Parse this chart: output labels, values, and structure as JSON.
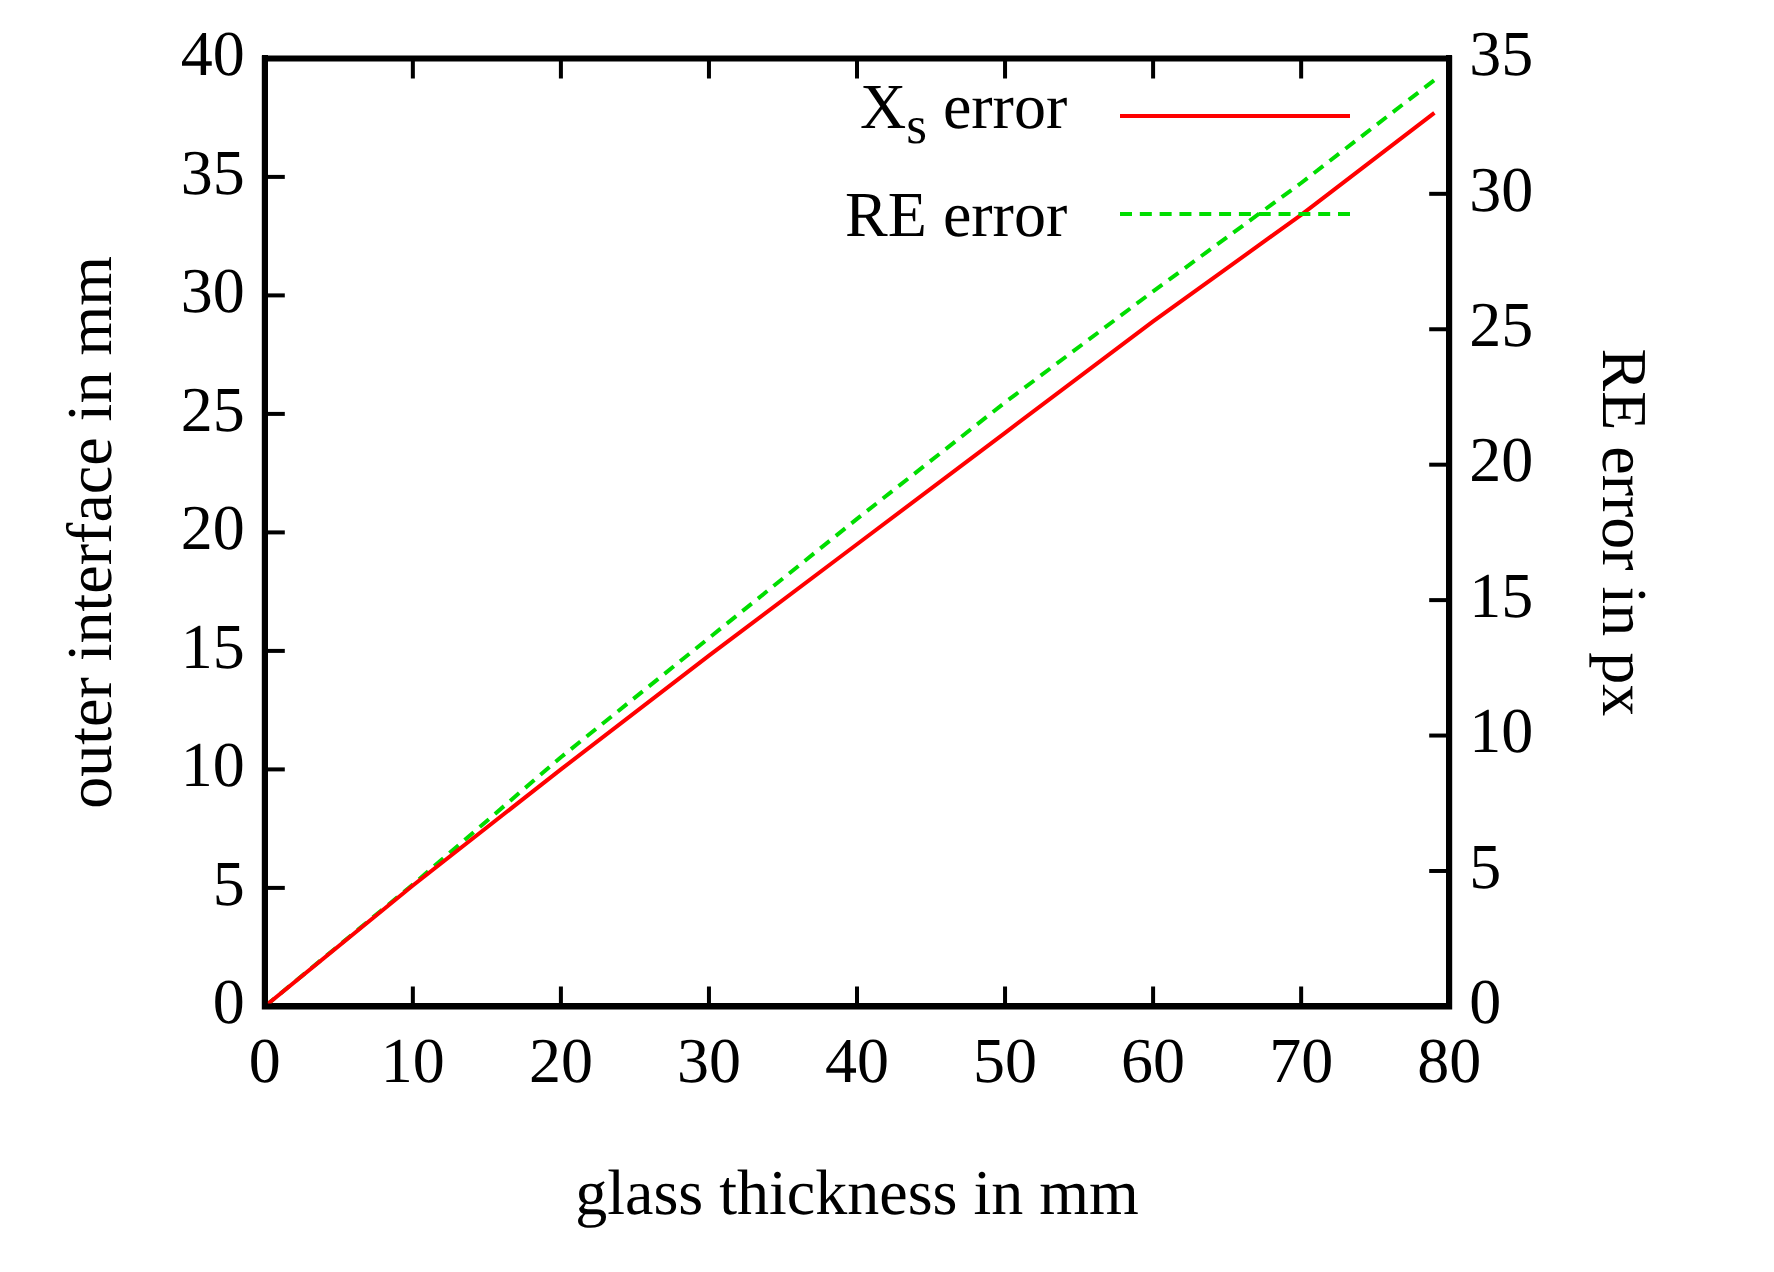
{
  "chart_data": {
    "type": "line",
    "xlabel": "glass thickness in mm",
    "ylabel": "outer interface in mm",
    "y2label": "RE error in px",
    "xlim": [
      0,
      80
    ],
    "xticks": [
      0,
      10,
      20,
      30,
      40,
      50,
      60,
      70,
      80
    ],
    "ylim": [
      0,
      40
    ],
    "yticks": [
      0,
      5,
      10,
      15,
      20,
      25,
      30,
      35,
      40
    ],
    "y2lim": [
      0,
      35
    ],
    "y2ticks": [
      0,
      5,
      10,
      15,
      20,
      25,
      30,
      35
    ],
    "legend": "top right",
    "grid": false,
    "marker": "none",
    "series": [
      {
        "name": "X$_{s}$ error",
        "color": "#ff0000",
        "line_style": "solid",
        "x": [
          0,
          10,
          20,
          30,
          40,
          50,
          60,
          70,
          79
        ],
        "values": [
          0,
          5.1,
          10.0,
          14.8,
          19.5,
          24.2,
          28.9,
          33.4,
          37.7
        ]
      },
      {
        "name": "RE error",
        "color": "#00dd00",
        "line_style": "dashed",
        "axis": "y2",
        "x": [
          0,
          10,
          20,
          30,
          40,
          50,
          60,
          70,
          79
        ],
        "values": [
          0,
          4.5,
          9.2,
          13.6,
          18.0,
          22.3,
          26.4,
          30.4,
          34.2
        ]
      }
    ]
  }
}
